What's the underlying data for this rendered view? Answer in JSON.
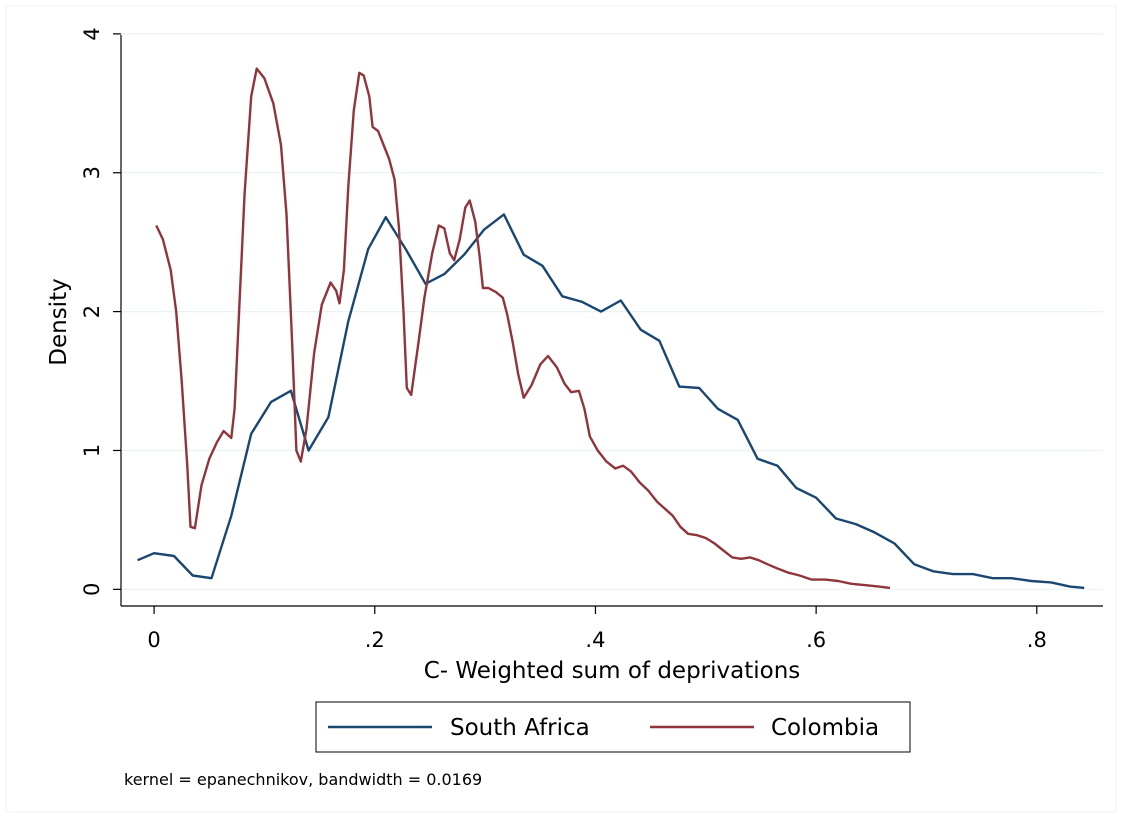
{
  "chart_data": {
    "type": "line",
    "xlabel": "C- Weighted sum of deprivations",
    "ylabel": "Density",
    "xlim": [
      -0.03,
      0.86
    ],
    "ylim": [
      -0.12,
      4.1
    ],
    "x_ticks": [
      0,
      0.2,
      0.4,
      0.6,
      0.8
    ],
    "x_tick_labels": [
      "0",
      ".2",
      ".4",
      ".6",
      ".8"
    ],
    "y_ticks": [
      0,
      1,
      2,
      3,
      4
    ],
    "y_tick_labels": [
      "0",
      "1",
      "2",
      "3",
      "4"
    ],
    "grid": "horizontal",
    "legend_position": "bottom",
    "note": "kernel = epanechnikov, bandwidth = 0.0169",
    "series": [
      {
        "name": "South Africa",
        "color": "#1a476f",
        "points": [
          [
            -0.015,
            0.21
          ],
          [
            0.0,
            0.26
          ],
          [
            0.018,
            0.24
          ],
          [
            0.035,
            0.1
          ],
          [
            0.052,
            0.08
          ],
          [
            0.07,
            0.53
          ],
          [
            0.088,
            1.12
          ],
          [
            0.106,
            1.35
          ],
          [
            0.124,
            1.43
          ],
          [
            0.14,
            1.0
          ],
          [
            0.158,
            1.24
          ],
          [
            0.176,
            1.93
          ],
          [
            0.194,
            2.45
          ],
          [
            0.21,
            2.68
          ],
          [
            0.228,
            2.45
          ],
          [
            0.246,
            2.2
          ],
          [
            0.263,
            2.27
          ],
          [
            0.281,
            2.41
          ],
          [
            0.299,
            2.59
          ],
          [
            0.317,
            2.7
          ],
          [
            0.335,
            2.41
          ],
          [
            0.352,
            2.33
          ],
          [
            0.37,
            2.11
          ],
          [
            0.388,
            2.07
          ],
          [
            0.405,
            2.0
          ],
          [
            0.423,
            2.08
          ],
          [
            0.441,
            1.87
          ],
          [
            0.458,
            1.79
          ],
          [
            0.476,
            1.46
          ],
          [
            0.494,
            1.45
          ],
          [
            0.511,
            1.3
          ],
          [
            0.529,
            1.22
          ],
          [
            0.547,
            0.94
          ],
          [
            0.565,
            0.89
          ],
          [
            0.582,
            0.73
          ],
          [
            0.6,
            0.66
          ],
          [
            0.618,
            0.51
          ],
          [
            0.636,
            0.47
          ],
          [
            0.653,
            0.41
          ],
          [
            0.671,
            0.33
          ],
          [
            0.689,
            0.18
          ],
          [
            0.706,
            0.13
          ],
          [
            0.724,
            0.11
          ],
          [
            0.742,
            0.11
          ],
          [
            0.76,
            0.08
          ],
          [
            0.777,
            0.08
          ],
          [
            0.795,
            0.06
          ],
          [
            0.813,
            0.05
          ],
          [
            0.83,
            0.02
          ],
          [
            0.843,
            0.01
          ]
        ]
      },
      {
        "name": "Colombia",
        "color": "#90353b",
        "points": [
          [
            0.002,
            2.62
          ],
          [
            0.008,
            2.52
          ],
          [
            0.015,
            2.3
          ],
          [
            0.02,
            2.0
          ],
          [
            0.025,
            1.5
          ],
          [
            0.03,
            0.9
          ],
          [
            0.033,
            0.45
          ],
          [
            0.037,
            0.44
          ],
          [
            0.043,
            0.75
          ],
          [
            0.05,
            0.94
          ],
          [
            0.057,
            1.06
          ],
          [
            0.063,
            1.14
          ],
          [
            0.07,
            1.09
          ],
          [
            0.073,
            1.3
          ],
          [
            0.077,
            2.0
          ],
          [
            0.082,
            2.85
          ],
          [
            0.088,
            3.55
          ],
          [
            0.093,
            3.75
          ],
          [
            0.1,
            3.68
          ],
          [
            0.108,
            3.5
          ],
          [
            0.115,
            3.2
          ],
          [
            0.12,
            2.7
          ],
          [
            0.125,
            1.8
          ],
          [
            0.129,
            1.0
          ],
          [
            0.133,
            0.92
          ],
          [
            0.138,
            1.15
          ],
          [
            0.145,
            1.7
          ],
          [
            0.152,
            2.05
          ],
          [
            0.16,
            2.21
          ],
          [
            0.165,
            2.15
          ],
          [
            0.168,
            2.06
          ],
          [
            0.172,
            2.3
          ],
          [
            0.176,
            2.9
          ],
          [
            0.181,
            3.45
          ],
          [
            0.186,
            3.72
          ],
          [
            0.19,
            3.7
          ],
          [
            0.195,
            3.55
          ],
          [
            0.198,
            3.33
          ],
          [
            0.203,
            3.3
          ],
          [
            0.208,
            3.2
          ],
          [
            0.213,
            3.1
          ],
          [
            0.218,
            2.95
          ],
          [
            0.222,
            2.6
          ],
          [
            0.226,
            2.0
          ],
          [
            0.229,
            1.45
          ],
          [
            0.233,
            1.4
          ],
          [
            0.24,
            1.8
          ],
          [
            0.245,
            2.1
          ],
          [
            0.252,
            2.42
          ],
          [
            0.258,
            2.62
          ],
          [
            0.263,
            2.6
          ],
          [
            0.268,
            2.42
          ],
          [
            0.272,
            2.37
          ],
          [
            0.277,
            2.52
          ],
          [
            0.282,
            2.75
          ],
          [
            0.286,
            2.8
          ],
          [
            0.291,
            2.65
          ],
          [
            0.295,
            2.4
          ],
          [
            0.298,
            2.17
          ],
          [
            0.303,
            2.17
          ],
          [
            0.31,
            2.14
          ],
          [
            0.316,
            2.1
          ],
          [
            0.32,
            1.98
          ],
          [
            0.325,
            1.78
          ],
          [
            0.33,
            1.55
          ],
          [
            0.335,
            1.38
          ],
          [
            0.342,
            1.47
          ],
          [
            0.35,
            1.62
          ],
          [
            0.357,
            1.68
          ],
          [
            0.365,
            1.6
          ],
          [
            0.372,
            1.48
          ],
          [
            0.378,
            1.42
          ],
          [
            0.385,
            1.43
          ],
          [
            0.39,
            1.3
          ],
          [
            0.395,
            1.1
          ],
          [
            0.402,
            1.0
          ],
          [
            0.41,
            0.92
          ],
          [
            0.418,
            0.87
          ],
          [
            0.425,
            0.89
          ],
          [
            0.432,
            0.85
          ],
          [
            0.44,
            0.77
          ],
          [
            0.448,
            0.71
          ],
          [
            0.456,
            0.63
          ],
          [
            0.463,
            0.58
          ],
          [
            0.47,
            0.53
          ],
          [
            0.477,
            0.45
          ],
          [
            0.484,
            0.4
          ],
          [
            0.492,
            0.39
          ],
          [
            0.5,
            0.37
          ],
          [
            0.508,
            0.33
          ],
          [
            0.516,
            0.28
          ],
          [
            0.524,
            0.23
          ],
          [
            0.532,
            0.22
          ],
          [
            0.54,
            0.23
          ],
          [
            0.548,
            0.21
          ],
          [
            0.556,
            0.18
          ],
          [
            0.565,
            0.15
          ],
          [
            0.575,
            0.12
          ],
          [
            0.585,
            0.1
          ],
          [
            0.596,
            0.07
          ],
          [
            0.608,
            0.07
          ],
          [
            0.62,
            0.06
          ],
          [
            0.632,
            0.04
          ],
          [
            0.645,
            0.03
          ],
          [
            0.657,
            0.02
          ],
          [
            0.667,
            0.01
          ]
        ]
      }
    ]
  }
}
